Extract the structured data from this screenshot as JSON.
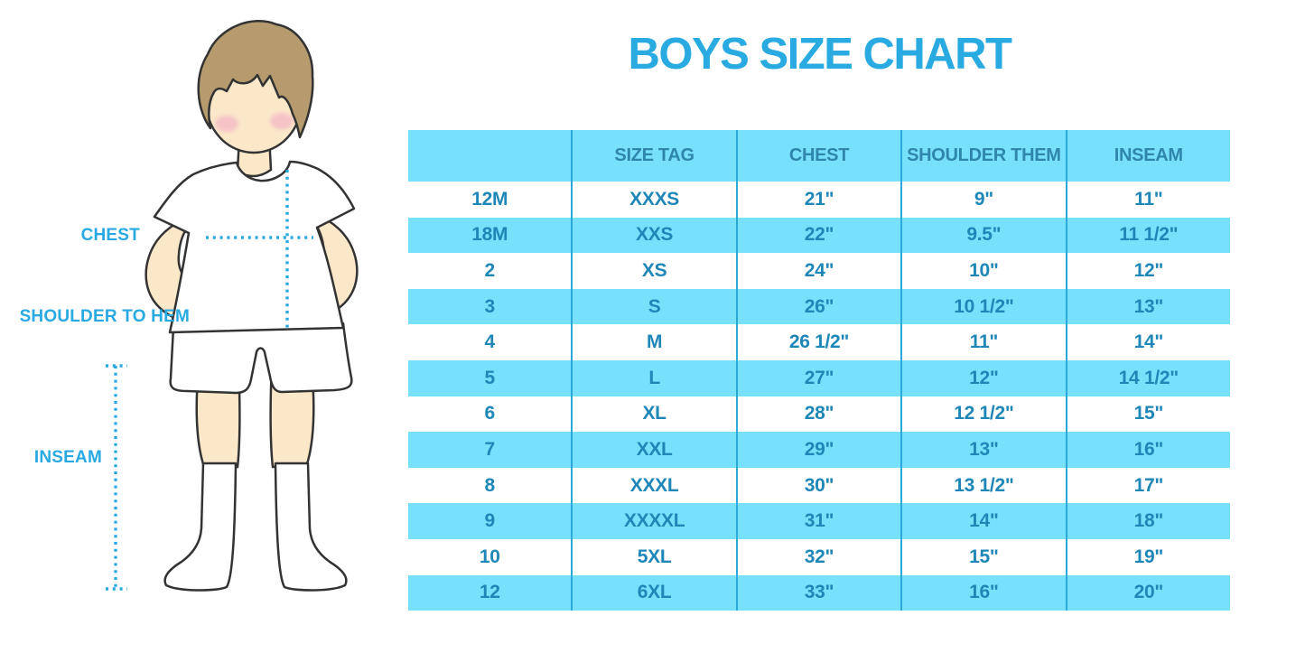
{
  "title": "BOYS SIZE CHART",
  "figure": {
    "labels": {
      "chest": "CHEST",
      "shoulder_to_hem": "SHOULDER TO HEM",
      "inseam": "INSEAM"
    }
  },
  "chart_data": {
    "type": "table",
    "title": "BOYS SIZE CHART",
    "columns": [
      "",
      "SIZE TAG",
      "CHEST",
      "SHOULDER THEM",
      "INSEAM"
    ],
    "rows": [
      [
        "12M",
        "XXXS",
        "21\"",
        "9\"",
        "11\""
      ],
      [
        "18M",
        "XXS",
        "22\"",
        "9.5\"",
        "11 1/2\""
      ],
      [
        "2",
        "XS",
        "24\"",
        "10\"",
        "12\""
      ],
      [
        "3",
        "S",
        "26\"",
        "10 1/2\"",
        "13\""
      ],
      [
        "4",
        "M",
        "26 1/2\"",
        "11\"",
        "14\""
      ],
      [
        "5",
        "L",
        "27\"",
        "12\"",
        "14 1/2\""
      ],
      [
        "6",
        "XL",
        "28\"",
        "12 1/2\"",
        "15\""
      ],
      [
        "7",
        "XXL",
        "29\"",
        "13\"",
        "16\""
      ],
      [
        "8",
        "XXXL",
        "30\"",
        "13 1/2\"",
        "17\""
      ],
      [
        "9",
        "XXXXL",
        "31\"",
        "14\"",
        "18\""
      ],
      [
        "10",
        "5XL",
        "32\"",
        "15\"",
        "19\""
      ],
      [
        "12",
        "6XL",
        "33\"",
        "16\"",
        "20\""
      ]
    ],
    "row_striping": "white / light-cyan alternating, header light-cyan",
    "grid": "vertical separators only"
  },
  "colors": {
    "accent": "#29a9e2",
    "title-blue": "#29abe2",
    "header-text": "#2e86ac",
    "cell-text": "#1e87b8",
    "row-highlight": "#77e1fb",
    "separator": "#2aa8d8",
    "dotted-line": "#29a9e2",
    "hair": "#b59b6e",
    "skin": "#fbe8c9",
    "blush": "#f4b9c6",
    "outline": "#333333"
  }
}
